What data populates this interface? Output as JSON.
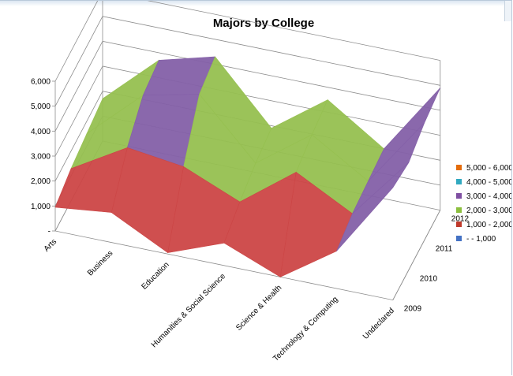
{
  "chart_data": {
    "type": "surface",
    "title": "Majors by College",
    "categories": [
      "Arts",
      "Business",
      "Education",
      "Humanities & Social Science",
      "Science & Health",
      "Technology & Computing",
      "Undeclared"
    ],
    "depth_categories": [
      "2009",
      "2010",
      "2011",
      "2012"
    ],
    "series": [
      {
        "name": "2009",
        "values": [
          950,
          1200,
          50,
          900,
          0,
          1500,
          4500
        ]
      },
      {
        "name": "2010",
        "values": [
          1300,
          2600,
          2300,
          1350,
          3000,
          1800,
          4300
        ]
      },
      {
        "name": "2011",
        "values": [
          1500,
          3500,
          4000,
          1700,
          3300,
          1900,
          4700
        ]
      },
      {
        "name": "2012",
        "values": [
          1700,
          3700,
          4300,
          1900,
          3500,
          2000,
          4900
        ]
      }
    ],
    "y_ticks": [
      "-",
      "1,000",
      "2,000",
      "3,000",
      "4,000",
      "5,000",
      "6,000"
    ],
    "ylim": [
      0,
      6000
    ],
    "grid": true,
    "legend_position": "right",
    "legend": [
      {
        "label": "5,000 - 6,000",
        "color": "#e46c0a",
        "fill": "#d98c3e"
      },
      {
        "label": "4,000 - 5,000",
        "color": "#31a9c0",
        "fill": "#3aa7b8"
      },
      {
        "label": "3,000 - 4,000",
        "color": "#7f4fa2",
        "fill": "#8460a8"
      },
      {
        "label": "2,000 - 3,000",
        "color": "#8cbf3f",
        "fill": "#96c050"
      },
      {
        "label": "1,000 - 2,000",
        "color": "#c0392b",
        "fill": "#cc4646"
      },
      {
        "label": "-  - 1,000",
        "color": "#4472c4",
        "fill": "#4f7ac0"
      }
    ]
  }
}
